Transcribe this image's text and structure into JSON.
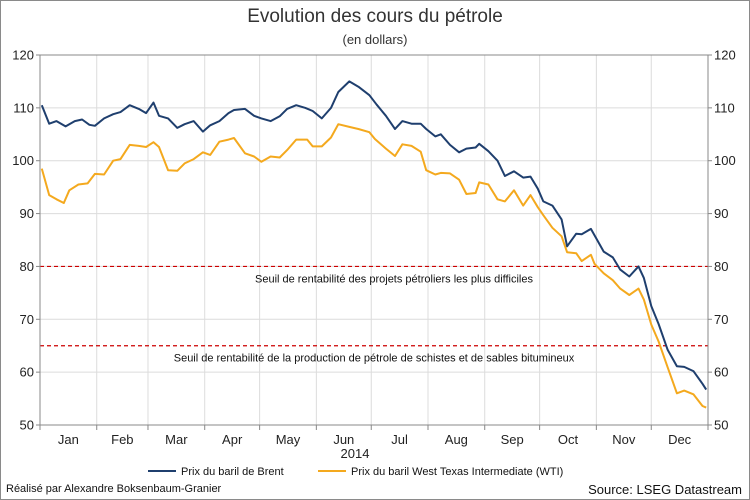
{
  "chart_data": {
    "type": "line",
    "title": "Evolution des cours du pétrole",
    "subtitle": "(en dollars)",
    "xlabel": "2014",
    "ylabel": "",
    "ylim": [
      50,
      120
    ],
    "yticks": [
      50,
      60,
      70,
      80,
      90,
      100,
      110,
      120
    ],
    "grid": true,
    "months": [
      "Jan",
      "Feb",
      "Mar",
      "Apr",
      "May",
      "Jun",
      "Jul",
      "Aug",
      "Sep",
      "Oct",
      "Nov",
      "Dec"
    ],
    "series": [
      {
        "name": "Prix du baril de Brent",
        "color": "#1F3F6E",
        "points": [
          [
            "2014-01-02",
            110.5
          ],
          [
            "2014-01-06",
            107.0
          ],
          [
            "2014-01-10",
            107.5
          ],
          [
            "2014-01-15",
            106.5
          ],
          [
            "2014-01-20",
            107.5
          ],
          [
            "2014-01-24",
            107.8
          ],
          [
            "2014-01-28",
            106.8
          ],
          [
            "2014-01-31",
            106.6
          ],
          [
            "2014-02-05",
            108.0
          ],
          [
            "2014-02-10",
            108.8
          ],
          [
            "2014-02-14",
            109.2
          ],
          [
            "2014-02-19",
            110.5
          ],
          [
            "2014-02-24",
            109.8
          ],
          [
            "2014-02-28",
            109.0
          ],
          [
            "2014-03-04",
            111.0
          ],
          [
            "2014-03-07",
            108.5
          ],
          [
            "2014-03-12",
            108.0
          ],
          [
            "2014-03-17",
            106.2
          ],
          [
            "2014-03-21",
            106.9
          ],
          [
            "2014-03-26",
            107.5
          ],
          [
            "2014-03-31",
            105.5
          ],
          [
            "2014-04-04",
            106.7
          ],
          [
            "2014-04-09",
            107.5
          ],
          [
            "2014-04-14",
            109.0
          ],
          [
            "2014-04-17",
            109.6
          ],
          [
            "2014-04-23",
            109.8
          ],
          [
            "2014-04-28",
            108.5
          ],
          [
            "2014-05-02",
            108.0
          ],
          [
            "2014-05-07",
            107.5
          ],
          [
            "2014-05-12",
            108.4
          ],
          [
            "2014-05-16",
            109.8
          ],
          [
            "2014-05-21",
            110.5
          ],
          [
            "2014-05-26",
            110.0
          ],
          [
            "2014-05-30",
            109.4
          ],
          [
            "2014-06-04",
            108.0
          ],
          [
            "2014-06-09",
            110.0
          ],
          [
            "2014-06-13",
            113.0
          ],
          [
            "2014-06-19",
            115.0
          ],
          [
            "2014-06-24",
            114.0
          ],
          [
            "2014-06-30",
            112.4
          ],
          [
            "2014-07-04",
            110.6
          ],
          [
            "2014-07-09",
            108.5
          ],
          [
            "2014-07-14",
            106.0
          ],
          [
            "2014-07-18",
            107.5
          ],
          [
            "2014-07-23",
            107.0
          ],
          [
            "2014-07-28",
            107.0
          ],
          [
            "2014-07-31",
            106.0
          ],
          [
            "2014-08-05",
            104.6
          ],
          [
            "2014-08-08",
            105.0
          ],
          [
            "2014-08-13",
            103.0
          ],
          [
            "2014-08-18",
            101.6
          ],
          [
            "2014-08-22",
            102.3
          ],
          [
            "2014-08-27",
            102.5
          ],
          [
            "2014-08-29",
            103.2
          ],
          [
            "2014-09-03",
            101.8
          ],
          [
            "2014-09-08",
            100.0
          ],
          [
            "2014-09-12",
            97.1
          ],
          [
            "2014-09-17",
            98.0
          ],
          [
            "2014-09-22",
            96.8
          ],
          [
            "2014-09-26",
            97.0
          ],
          [
            "2014-09-30",
            94.7
          ],
          [
            "2014-10-03",
            92.3
          ],
          [
            "2014-10-08",
            91.5
          ],
          [
            "2014-10-13",
            88.9
          ],
          [
            "2014-10-16",
            83.8
          ],
          [
            "2014-10-21",
            86.2
          ],
          [
            "2014-10-24",
            86.1
          ],
          [
            "2014-10-29",
            87.1
          ],
          [
            "2014-10-31",
            85.9
          ],
          [
            "2014-11-05",
            82.8
          ],
          [
            "2014-11-10",
            81.7
          ],
          [
            "2014-11-14",
            79.4
          ],
          [
            "2014-11-19",
            78.1
          ],
          [
            "2014-11-24",
            80.0
          ],
          [
            "2014-11-27",
            77.8
          ],
          [
            "2014-12-01",
            72.5
          ],
          [
            "2014-12-05",
            69.1
          ],
          [
            "2014-12-10",
            64.2
          ],
          [
            "2014-12-15",
            61.1
          ],
          [
            "2014-12-19",
            61.0
          ],
          [
            "2014-12-24",
            60.2
          ],
          [
            "2014-12-29",
            57.8
          ],
          [
            "2014-12-31",
            56.7
          ]
        ]
      },
      {
        "name": "Prix du baril West Texas Intermediate (WTI)",
        "color": "#F4A91E",
        "points": [
          [
            "2014-01-02",
            98.5
          ],
          [
            "2014-01-06",
            93.5
          ],
          [
            "2014-01-10",
            92.7
          ],
          [
            "2014-01-14",
            92.0
          ],
          [
            "2014-01-17",
            94.4
          ],
          [
            "2014-01-22",
            95.5
          ],
          [
            "2014-01-27",
            95.7
          ],
          [
            "2014-01-31",
            97.5
          ],
          [
            "2014-02-05",
            97.4
          ],
          [
            "2014-02-10",
            100.0
          ],
          [
            "2014-02-14",
            100.3
          ],
          [
            "2014-02-19",
            103.0
          ],
          [
            "2014-02-24",
            102.8
          ],
          [
            "2014-02-28",
            102.6
          ],
          [
            "2014-03-04",
            103.5
          ],
          [
            "2014-03-07",
            102.6
          ],
          [
            "2014-03-12",
            98.2
          ],
          [
            "2014-03-17",
            98.1
          ],
          [
            "2014-03-21",
            99.5
          ],
          [
            "2014-03-26",
            100.3
          ],
          [
            "2014-03-31",
            101.6
          ],
          [
            "2014-04-04",
            101.1
          ],
          [
            "2014-04-09",
            103.6
          ],
          [
            "2014-04-14",
            104.0
          ],
          [
            "2014-04-17",
            104.3
          ],
          [
            "2014-04-23",
            101.4
          ],
          [
            "2014-04-28",
            100.8
          ],
          [
            "2014-05-02",
            99.8
          ],
          [
            "2014-05-07",
            100.8
          ],
          [
            "2014-05-12",
            100.6
          ],
          [
            "2014-05-16",
            102.0
          ],
          [
            "2014-05-21",
            104.0
          ],
          [
            "2014-05-27",
            104.0
          ],
          [
            "2014-05-30",
            102.7
          ],
          [
            "2014-06-04",
            102.7
          ],
          [
            "2014-06-09",
            104.4
          ],
          [
            "2014-06-13",
            106.9
          ],
          [
            "2014-06-19",
            106.4
          ],
          [
            "2014-06-24",
            106.0
          ],
          [
            "2014-06-30",
            105.4
          ],
          [
            "2014-07-03",
            104.1
          ],
          [
            "2014-07-09",
            102.3
          ],
          [
            "2014-07-14",
            100.9
          ],
          [
            "2014-07-18",
            103.1
          ],
          [
            "2014-07-23",
            102.8
          ],
          [
            "2014-07-28",
            101.7
          ],
          [
            "2014-07-31",
            98.2
          ],
          [
            "2014-08-05",
            97.4
          ],
          [
            "2014-08-08",
            97.7
          ],
          [
            "2014-08-13",
            97.6
          ],
          [
            "2014-08-18",
            96.4
          ],
          [
            "2014-08-22",
            93.7
          ],
          [
            "2014-08-27",
            93.9
          ],
          [
            "2014-08-29",
            95.9
          ],
          [
            "2014-09-03",
            95.5
          ],
          [
            "2014-09-08",
            92.7
          ],
          [
            "2014-09-12",
            92.3
          ],
          [
            "2014-09-17",
            94.4
          ],
          [
            "2014-09-22",
            91.5
          ],
          [
            "2014-09-26",
            93.5
          ],
          [
            "2014-09-30",
            91.2
          ],
          [
            "2014-10-03",
            89.7
          ],
          [
            "2014-10-08",
            87.3
          ],
          [
            "2014-10-13",
            85.7
          ],
          [
            "2014-10-16",
            82.7
          ],
          [
            "2014-10-21",
            82.5
          ],
          [
            "2014-10-24",
            81.0
          ],
          [
            "2014-10-29",
            82.2
          ],
          [
            "2014-10-31",
            80.5
          ],
          [
            "2014-11-05",
            78.7
          ],
          [
            "2014-11-10",
            77.4
          ],
          [
            "2014-11-14",
            75.8
          ],
          [
            "2014-11-19",
            74.6
          ],
          [
            "2014-11-24",
            75.8
          ],
          [
            "2014-11-27",
            73.7
          ],
          [
            "2014-12-01",
            69.0
          ],
          [
            "2014-12-05",
            65.8
          ],
          [
            "2014-12-10",
            60.9
          ],
          [
            "2014-12-15",
            56.0
          ],
          [
            "2014-12-19",
            56.5
          ],
          [
            "2014-12-24",
            55.8
          ],
          [
            "2014-12-29",
            53.6
          ],
          [
            "2014-12-31",
            53.3
          ]
        ]
      }
    ],
    "reference_lines": [
      {
        "value": 80,
        "label": "Seuil de rentabilité des projets pétroliers les plus difficiles",
        "color": "#CC0000"
      },
      {
        "value": 65,
        "label": "Seuil de rentabilité de la production de pétrole de schistes et de sables bitumineux",
        "color": "#CC0000"
      }
    ],
    "legend_position": "bottom"
  },
  "credit": "Réalisé par Alexandre Boksenbaum-Granier",
  "source": "Source: LSEG Datastream"
}
